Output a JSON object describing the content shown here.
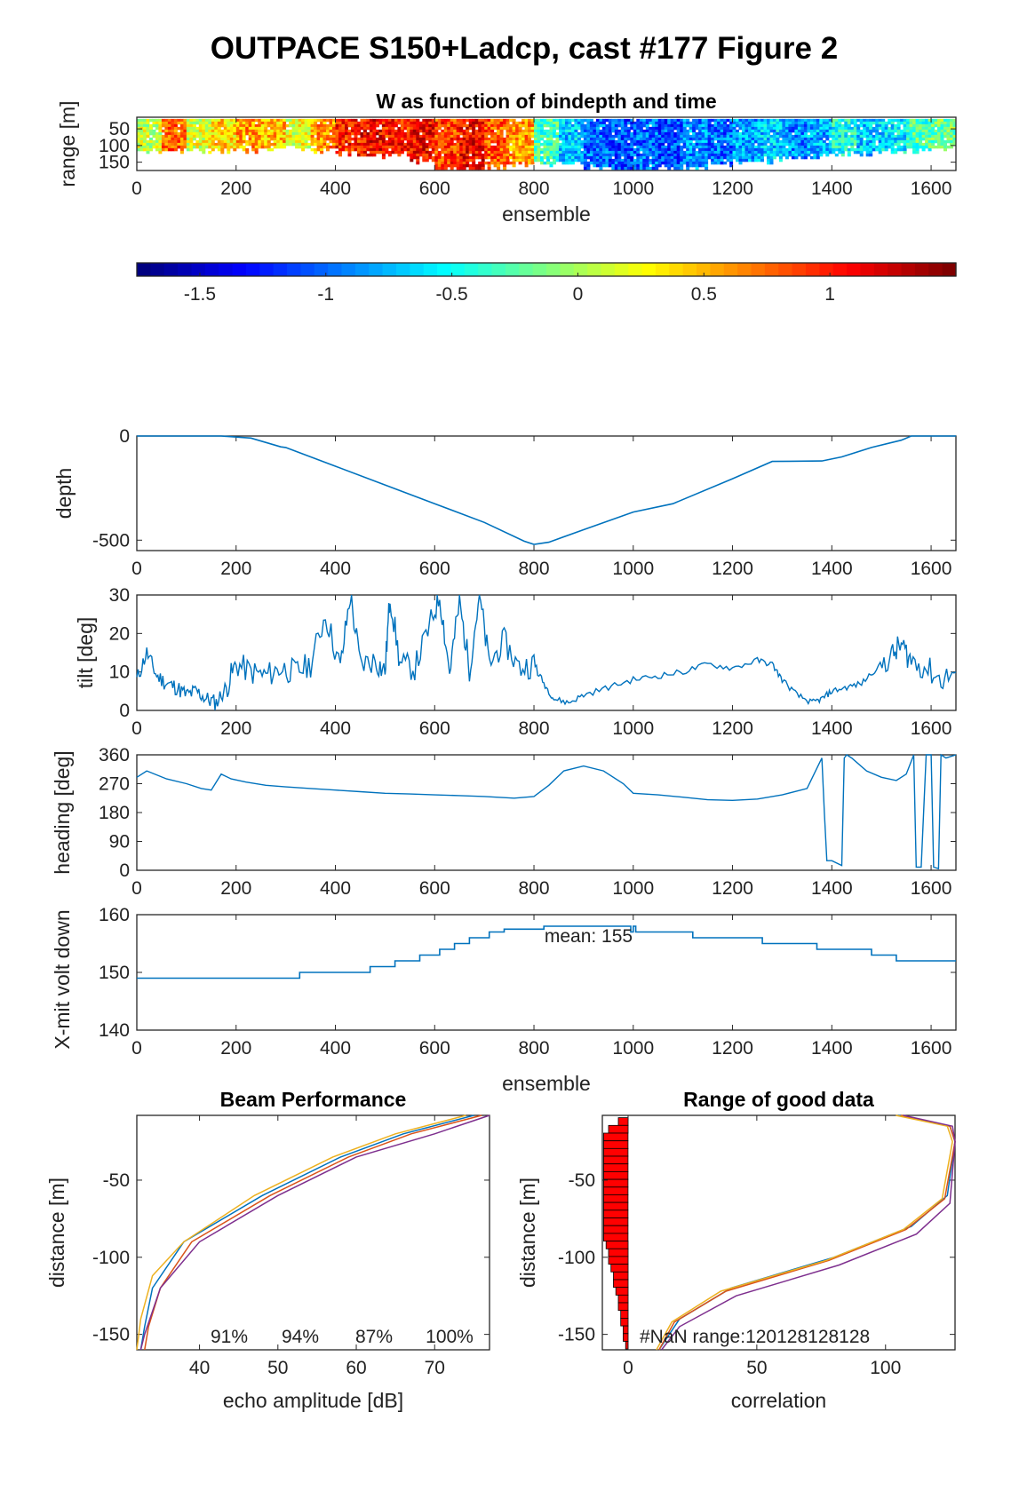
{
  "figure": {
    "title": "OUTPACE S150+Ladcp, cast #177 Figure 2"
  },
  "chart_data": [
    {
      "id": "w-image",
      "type": "heatmap",
      "title": "W as function of bindepth and time",
      "xlabel": "ensemble",
      "ylabel": "range [m]",
      "xlim": [
        0,
        1650
      ],
      "ylim": [
        175,
        15
      ],
      "xticks": [
        0,
        200,
        400,
        600,
        800,
        1000,
        1200,
        1400,
        1600
      ],
      "yticks": [
        50,
        100,
        150
      ],
      "colorbar": {
        "colormap": "jet",
        "clim": [
          -1.75,
          1.5
        ],
        "ticks": [
          -1.5,
          -1,
          -0.5,
          0,
          0.5,
          1
        ],
        "tick_labels": [
          "-1.5",
          "-1",
          "-0.5",
          "0",
          "0.5",
          "1"
        ]
      },
      "x_segments": [
        0,
        50,
        100,
        150,
        200,
        250,
        300,
        350,
        400,
        450,
        500,
        550,
        600,
        650,
        700,
        750,
        800,
        850,
        900,
        950,
        1000,
        1050,
        1100,
        1150,
        1200,
        1250,
        1300,
        1350,
        1400,
        1450,
        1500,
        1550,
        1600,
        1650
      ],
      "w_mean": [
        0.1,
        0.8,
        0.2,
        0.4,
        0.6,
        0.5,
        0.2,
        0.6,
        1.0,
        1.1,
        1.0,
        1.1,
        0.9,
        1.1,
        0.8,
        0.6,
        -0.3,
        -0.7,
        -1.0,
        -1.1,
        -1.0,
        -1.1,
        -0.9,
        -1.0,
        -0.8,
        -0.7,
        -0.9,
        -0.8,
        -0.5,
        -0.7,
        -0.6,
        -0.3,
        -0.2
      ],
      "good_range_max": [
        110,
        110,
        110,
        110,
        110,
        110,
        105,
        110,
        120,
        125,
        120,
        140,
        165,
        170,
        160,
        155,
        150,
        150,
        160,
        170,
        175,
        165,
        160,
        150,
        150,
        140,
        130,
        130,
        120,
        120,
        115,
        110,
        105
      ]
    },
    {
      "id": "depth",
      "type": "line",
      "ylabel": "depth",
      "xlim": [
        0,
        1650
      ],
      "ylim": [
        -550,
        0
      ],
      "xticks": [
        0,
        200,
        400,
        600,
        800,
        1000,
        1200,
        1400,
        1600
      ],
      "yticks": [
        -500,
        0
      ],
      "x": [
        0,
        170,
        230,
        290,
        300,
        400,
        500,
        600,
        700,
        780,
        800,
        830,
        900,
        1000,
        1080,
        1200,
        1280,
        1380,
        1420,
        1480,
        1540,
        1560,
        1650
      ],
      "y": [
        0,
        0,
        -10,
        -52,
        -55,
        -145,
        -235,
        -325,
        -415,
        -505,
        -520,
        -510,
        -450,
        -365,
        -325,
        -205,
        -122,
        -120,
        -100,
        -55,
        -20,
        0,
        0
      ]
    },
    {
      "id": "tilt",
      "type": "line",
      "ylabel": "tilt [deg]",
      "xlim": [
        0,
        1650
      ],
      "ylim": [
        0,
        30
      ],
      "xticks": [
        0,
        200,
        400,
        600,
        800,
        1000,
        1200,
        1400,
        1600
      ],
      "yticks": [
        0,
        10,
        20,
        30
      ],
      "x": [
        0,
        20,
        40,
        60,
        80,
        100,
        120,
        140,
        160,
        180,
        200,
        230,
        260,
        290,
        320,
        350,
        380,
        410,
        430,
        450,
        480,
        500,
        510,
        530,
        560,
        590,
        610,
        630,
        650,
        670,
        690,
        710,
        740,
        770,
        800,
        820,
        840,
        870,
        900,
        950,
        1000,
        1050,
        1100,
        1150,
        1200,
        1250,
        1280,
        1300,
        1330,
        1360,
        1380,
        1400,
        1430,
        1460,
        1490,
        1520,
        1540,
        1560,
        1590,
        1620,
        1650
      ],
      "y": [
        8,
        15,
        9,
        7,
        6,
        4,
        5,
        3,
        2,
        6,
        12,
        10,
        9,
        11,
        10,
        12,
        25,
        11,
        30,
        12,
        13,
        10,
        30,
        12,
        11,
        22,
        30,
        10,
        28,
        11,
        30,
        12,
        18,
        11,
        12,
        7,
        3,
        2,
        4,
        6,
        8,
        9,
        10,
        12,
        11,
        13,
        12,
        8,
        4,
        2,
        3,
        5,
        6,
        7,
        11,
        14,
        17,
        13,
        11,
        8,
        10
      ]
    },
    {
      "id": "heading",
      "type": "line",
      "ylabel": "heading [deg]",
      "xlim": [
        0,
        1650
      ],
      "ylim": [
        0,
        360
      ],
      "xticks": [
        0,
        200,
        400,
        600,
        800,
        1000,
        1200,
        1400,
        1600
      ],
      "yticks": [
        0,
        90,
        180,
        270,
        360
      ],
      "x": [
        0,
        20,
        60,
        100,
        130,
        150,
        170,
        190,
        220,
        260,
        300,
        350,
        400,
        450,
        500,
        550,
        600,
        650,
        700,
        760,
        800,
        830,
        860,
        900,
        940,
        980,
        1000,
        1050,
        1100,
        1150,
        1200,
        1250,
        1300,
        1350,
        1380,
        1385,
        1390,
        1400,
        1420,
        1425,
        1430,
        1440,
        1470,
        1500,
        1530,
        1550,
        1560,
        1565,
        1570,
        1580,
        1590,
        1600,
        1605,
        1615,
        1620,
        1630,
        1650
      ],
      "y": [
        290,
        310,
        285,
        270,
        255,
        250,
        300,
        285,
        275,
        265,
        260,
        255,
        250,
        245,
        240,
        238,
        235,
        233,
        230,
        225,
        230,
        265,
        310,
        325,
        310,
        270,
        240,
        235,
        228,
        220,
        218,
        222,
        235,
        255,
        350,
        180,
        30,
        30,
        15,
        350,
        360,
        350,
        310,
        290,
        280,
        300,
        340,
        360,
        10,
        10,
        360,
        360,
        10,
        5,
        360,
        350,
        360
      ]
    },
    {
      "id": "xmit-volt",
      "type": "line",
      "ylabel": "X-mit volt down",
      "xlabel": "ensemble",
      "xlim": [
        0,
        1650
      ],
      "ylim": [
        140,
        160
      ],
      "xticks": [
        0,
        200,
        400,
        600,
        800,
        1000,
        1200,
        1400,
        1600
      ],
      "yticks": [
        140,
        150,
        160
      ],
      "annotation": "mean: 155",
      "x": [
        0,
        328,
        328,
        470,
        470,
        520,
        520,
        570,
        570,
        610,
        610,
        640,
        640,
        670,
        670,
        710,
        710,
        740,
        740,
        820,
        820,
        995,
        995,
        1000,
        1000,
        1005,
        1005,
        1120,
        1120,
        1260,
        1260,
        1370,
        1370,
        1480,
        1480,
        1530,
        1530,
        1650
      ],
      "y": [
        149,
        149,
        150,
        150,
        151,
        151,
        152,
        152,
        153,
        153,
        154,
        154,
        155,
        155,
        156,
        156,
        157,
        157,
        157.5,
        157.5,
        158,
        158,
        157,
        157,
        158,
        158,
        157,
        157,
        156,
        156,
        155,
        155,
        154,
        154,
        153,
        153,
        152,
        152
      ]
    },
    {
      "id": "beam-performance",
      "type": "line",
      "title": "Beam Performance",
      "xlabel": "echo amplitude [dB]",
      "ylabel": "distance [m]",
      "xlim": [
        32,
        77
      ],
      "ylim": [
        -160,
        -8
      ],
      "xticks": [
        40,
        50,
        60,
        70
      ],
      "yticks": [
        -150,
        -100,
        -50
      ],
      "beam_percent_labels": [
        "91%",
        "94%",
        "87%",
        "100%"
      ],
      "series": [
        {
          "color": "#0072BD",
          "x": [
            75,
            66,
            58,
            48,
            38,
            34,
            33,
            32.5
          ],
          "y": [
            -8,
            -20,
            -35,
            -60,
            -90,
            -120,
            -145,
            -160
          ]
        },
        {
          "color": "#D95319",
          "x": [
            76,
            67,
            59,
            49,
            39,
            35,
            33.5,
            33
          ],
          "y": [
            -8,
            -20,
            -35,
            -60,
            -90,
            -120,
            -145,
            -160
          ]
        },
        {
          "color": "#EDB120",
          "x": [
            74,
            65,
            57,
            47,
            38,
            34,
            32.5,
            32
          ],
          "y": [
            -8,
            -20,
            -35,
            -60,
            -90,
            -112,
            -140,
            -160
          ]
        },
        {
          "color": "#7E2F8E",
          "x": [
            77,
            70,
            60,
            50,
            40,
            35,
            33,
            32.5
          ],
          "y": [
            -8,
            -20,
            -35,
            -60,
            -90,
            -120,
            -150,
            -160
          ]
        }
      ]
    },
    {
      "id": "range-good-data",
      "type": "line",
      "title": "Range of good data",
      "xlabel": "correlation",
      "ylabel": "distance [m]",
      "xlim": [
        -10,
        127
      ],
      "ylim": [
        -160,
        -8
      ],
      "xticks": [
        0,
        50,
        100
      ],
      "yticks": [
        -150,
        -100,
        -50
      ],
      "annotation": "#NaN range:120128128128",
      "nan_bars": [
        {
          "d": -12,
          "count": 4
        },
        {
          "d": -17,
          "count": 8
        },
        {
          "d": -22,
          "count": 10
        },
        {
          "d": -27,
          "count": 10
        },
        {
          "d": -32,
          "count": 10
        },
        {
          "d": -37,
          "count": 10
        },
        {
          "d": -42,
          "count": 10
        },
        {
          "d": -47,
          "count": 10
        },
        {
          "d": -52,
          "count": 10
        },
        {
          "d": -57,
          "count": 10
        },
        {
          "d": -62,
          "count": 10
        },
        {
          "d": -67,
          "count": 10
        },
        {
          "d": -72,
          "count": 10
        },
        {
          "d": -77,
          "count": 10
        },
        {
          "d": -82,
          "count": 10
        },
        {
          "d": -87,
          "count": 10
        },
        {
          "d": -92,
          "count": 9
        },
        {
          "d": -97,
          "count": 8
        },
        {
          "d": -102,
          "count": 8
        },
        {
          "d": -107,
          "count": 7
        },
        {
          "d": -112,
          "count": 6
        },
        {
          "d": -117,
          "count": 6
        },
        {
          "d": -122,
          "count": 5
        },
        {
          "d": -127,
          "count": 4
        },
        {
          "d": -132,
          "count": 4
        },
        {
          "d": -137,
          "count": 3
        },
        {
          "d": -142,
          "count": 3
        },
        {
          "d": -147,
          "count": 2
        },
        {
          "d": -152,
          "count": 2
        },
        {
          "d": -157,
          "count": 1
        }
      ],
      "series": [
        {
          "color": "#0072BD",
          "x": [
            105,
            125,
            127,
            124,
            110,
            80,
            40,
            20,
            12
          ],
          "y": [
            -8,
            -15,
            -25,
            -60,
            -80,
            -100,
            -120,
            -140,
            -160
          ]
        },
        {
          "color": "#D95319",
          "x": [
            106,
            125,
            127,
            123,
            108,
            78,
            38,
            18,
            12
          ],
          "y": [
            -8,
            -15,
            -25,
            -62,
            -82,
            -102,
            -122,
            -142,
            -160
          ]
        },
        {
          "color": "#EDB120",
          "x": [
            104,
            124,
            126,
            122,
            107,
            77,
            36,
            17,
            11
          ],
          "y": [
            -8,
            -15,
            -25,
            -62,
            -82,
            -102,
            -122,
            -142,
            -160
          ]
        },
        {
          "color": "#7E2F8E",
          "x": [
            107,
            126,
            127,
            125,
            112,
            82,
            42,
            20,
            13
          ],
          "y": [
            -8,
            -15,
            -25,
            -65,
            -85,
            -105,
            -125,
            -145,
            -160
          ]
        }
      ]
    }
  ]
}
